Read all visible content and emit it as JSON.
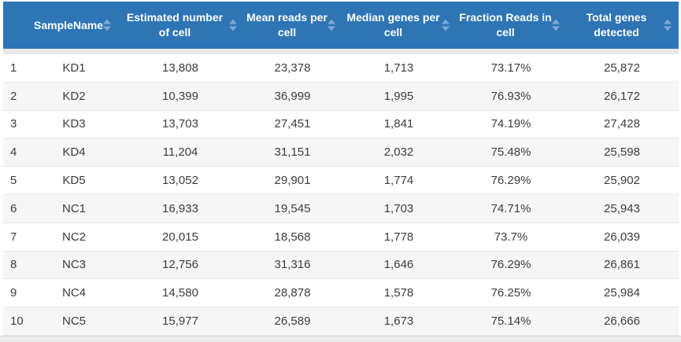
{
  "colors": {
    "header_bg": "#2e75b6",
    "header_text": "#ffffff",
    "sort_icon": "#7fa9d6",
    "head_gap": "#e9e9e9",
    "row_stripe": "#f6f6f6",
    "row_border": "#e6e6e6",
    "body_text": "#3c3c3c",
    "page_strip": "#ececec"
  },
  "table": {
    "columns": [
      {
        "label": "SampleName",
        "sort_icon": "sort-up-down-icon"
      },
      {
        "label": "Estimated number of cell",
        "sort_icon": "sort-up-down-icon"
      },
      {
        "label": "Mean reads per cell",
        "sort_icon": "sort-up-down-icon"
      },
      {
        "label": "Median genes per cell",
        "sort_icon": "sort-up-down-icon"
      },
      {
        "label": "Fraction Reads in cell",
        "sort_icon": "sort-up-down-icon"
      },
      {
        "label": "Total genes detected",
        "sort_icon": "sort-up-down-icon"
      }
    ],
    "rows": [
      {
        "index": "1",
        "sample": "KD1",
        "estimated_cells": "13,808",
        "mean_reads": "23,378",
        "median_genes": "1,713",
        "fraction_reads": "73.17%",
        "total_genes": "25,872"
      },
      {
        "index": "2",
        "sample": "KD2",
        "estimated_cells": "10,399",
        "mean_reads": "36,999",
        "median_genes": "1,995",
        "fraction_reads": "76.93%",
        "total_genes": "26,172"
      },
      {
        "index": "3",
        "sample": "KD3",
        "estimated_cells": "13,703",
        "mean_reads": "27,451",
        "median_genes": "1,841",
        "fraction_reads": "74.19%",
        "total_genes": "27,428"
      },
      {
        "index": "4",
        "sample": "KD4",
        "estimated_cells": "11,204",
        "mean_reads": "31,151",
        "median_genes": "2,032",
        "fraction_reads": "75.48%",
        "total_genes": "25,598"
      },
      {
        "index": "5",
        "sample": "KD5",
        "estimated_cells": "13,052",
        "mean_reads": "29,901",
        "median_genes": "1,774",
        "fraction_reads": "76.29%",
        "total_genes": "25,902"
      },
      {
        "index": "6",
        "sample": "NC1",
        "estimated_cells": "16,933",
        "mean_reads": "19,545",
        "median_genes": "1,703",
        "fraction_reads": "74.71%",
        "total_genes": "25,943"
      },
      {
        "index": "7",
        "sample": "NC2",
        "estimated_cells": "20,015",
        "mean_reads": "18,568",
        "median_genes": "1,778",
        "fraction_reads": "73.7%",
        "total_genes": "26,039"
      },
      {
        "index": "8",
        "sample": "NC3",
        "estimated_cells": "12,756",
        "mean_reads": "31,316",
        "median_genes": "1,646",
        "fraction_reads": "76.29%",
        "total_genes": "26,861"
      },
      {
        "index": "9",
        "sample": "NC4",
        "estimated_cells": "14,580",
        "mean_reads": "28,878",
        "median_genes": "1,578",
        "fraction_reads": "76.25%",
        "total_genes": "25,984"
      },
      {
        "index": "10",
        "sample": "NC5",
        "estimated_cells": "15,977",
        "mean_reads": "26,589",
        "median_genes": "1,673",
        "fraction_reads": "75.14%",
        "total_genes": "26,666"
      }
    ]
  }
}
